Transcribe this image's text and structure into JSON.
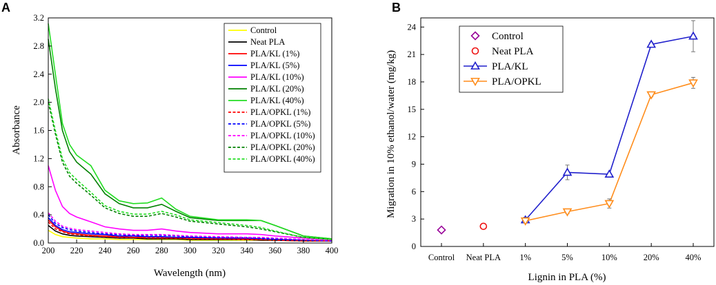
{
  "colors": {
    "control": "#ffff00",
    "neat": "#000000",
    "kl1": "#ff0000",
    "kl5": "#0000ff",
    "kl10": "#ff00ff",
    "kl20": "#008000",
    "kl40": "#22dd22",
    "klB": "#1f1fcc",
    "opklB": "#ff8c1a",
    "controlB": "#990099",
    "neatB": "#ee1111"
  },
  "chart_data": [
    {
      "panel": "A",
      "type": "line",
      "xlabel": "Wavelength (nm)",
      "ylabel": "Absorbance",
      "xlim": [
        200,
        400
      ],
      "ylim": [
        0,
        3.2
      ],
      "xticks": [
        "200",
        "220",
        "240",
        "260",
        "280",
        "300",
        "320",
        "340",
        "360",
        "380",
        "400"
      ],
      "yticks": [
        "0.0",
        "0.4",
        "0.8",
        "1.2",
        "1.6",
        "2.0",
        "2.4",
        "2.8",
        "3.2"
      ],
      "legend_position": "top-right",
      "x": [
        200,
        205,
        210,
        215,
        220,
        230,
        240,
        250,
        260,
        270,
        280,
        290,
        300,
        320,
        340,
        350,
        360,
        380,
        400
      ],
      "series": [
        {
          "name": "Control",
          "color_key": "control",
          "dashed": false,
          "values": [
            0.18,
            0.12,
            0.09,
            0.08,
            0.07,
            0.06,
            0.06,
            0.05,
            0.05,
            0.05,
            0.05,
            0.05,
            0.04,
            0.04,
            0.04,
            0.04,
            0.04,
            0.03,
            0.03
          ]
        },
        {
          "name": "Neat PLA",
          "color_key": "neat",
          "dashed": false,
          "values": [
            0.25,
            0.17,
            0.13,
            0.11,
            0.1,
            0.09,
            0.08,
            0.07,
            0.07,
            0.06,
            0.06,
            0.06,
            0.05,
            0.05,
            0.05,
            0.04,
            0.04,
            0.03,
            0.03
          ]
        },
        {
          "name": "PLA/KL (1%)",
          "color_key": "kl1",
          "dashed": false,
          "values": [
            0.33,
            0.23,
            0.17,
            0.14,
            0.13,
            0.11,
            0.1,
            0.09,
            0.08,
            0.08,
            0.08,
            0.07,
            0.07,
            0.06,
            0.06,
            0.05,
            0.05,
            0.04,
            0.03
          ]
        },
        {
          "name": "PLA/KL (5%)",
          "color_key": "kl5",
          "dashed": false,
          "values": [
            0.36,
            0.25,
            0.19,
            0.16,
            0.15,
            0.13,
            0.12,
            0.1,
            0.1,
            0.09,
            0.09,
            0.08,
            0.08,
            0.07,
            0.07,
            0.06,
            0.05,
            0.04,
            0.03
          ]
        },
        {
          "name": "PLA/KL (10%)",
          "color_key": "kl10",
          "dashed": false,
          "values": [
            1.1,
            0.75,
            0.52,
            0.42,
            0.37,
            0.3,
            0.23,
            0.2,
            0.18,
            0.18,
            0.2,
            0.17,
            0.15,
            0.13,
            0.13,
            0.12,
            0.1,
            0.07,
            0.05
          ]
        },
        {
          "name": "PLA/KL (20%)",
          "color_key": "kl20",
          "dashed": false,
          "values": [
            2.9,
            2.2,
            1.6,
            1.3,
            1.15,
            0.98,
            0.7,
            0.56,
            0.5,
            0.5,
            0.55,
            0.45,
            0.36,
            0.32,
            0.32,
            0.32,
            0.25,
            0.1,
            0.06
          ]
        },
        {
          "name": "PLA/KL (40%)",
          "color_key": "kl40",
          "dashed": false,
          "values": [
            3.12,
            2.4,
            1.7,
            1.4,
            1.25,
            1.1,
            0.75,
            0.6,
            0.56,
            0.57,
            0.64,
            0.48,
            0.38,
            0.33,
            0.33,
            0.32,
            0.25,
            0.1,
            0.06
          ]
        },
        {
          "name": "PLA/OPKL (1%)",
          "color_key": "kl1",
          "dashed": true,
          "values": [
            0.3,
            0.2,
            0.16,
            0.13,
            0.12,
            0.1,
            0.09,
            0.08,
            0.08,
            0.07,
            0.07,
            0.07,
            0.06,
            0.06,
            0.05,
            0.05,
            0.04,
            0.03,
            0.03
          ]
        },
        {
          "name": "PLA/OPKL (5%)",
          "color_key": "kl5",
          "dashed": true,
          "values": [
            0.4,
            0.28,
            0.22,
            0.19,
            0.17,
            0.15,
            0.13,
            0.12,
            0.11,
            0.11,
            0.11,
            0.1,
            0.09,
            0.08,
            0.08,
            0.07,
            0.06,
            0.04,
            0.03
          ]
        },
        {
          "name": "PLA/OPKL (10%)",
          "color_key": "kl10",
          "dashed": true,
          "values": [
            0.43,
            0.31,
            0.24,
            0.21,
            0.19,
            0.17,
            0.15,
            0.13,
            0.12,
            0.12,
            0.12,
            0.11,
            0.1,
            0.09,
            0.08,
            0.08,
            0.07,
            0.05,
            0.04
          ]
        },
        {
          "name": "PLA/OPKL (20%)",
          "color_key": "kl20",
          "dashed": true,
          "values": [
            2.0,
            1.55,
            1.15,
            0.95,
            0.85,
            0.68,
            0.5,
            0.42,
            0.38,
            0.38,
            0.42,
            0.37,
            0.31,
            0.27,
            0.23,
            0.2,
            0.16,
            0.08,
            0.05
          ]
        },
        {
          "name": "PLA/OPKL (40%)",
          "color_key": "kl40",
          "dashed": true,
          "values": [
            2.05,
            1.6,
            1.2,
            1.0,
            0.9,
            0.72,
            0.53,
            0.45,
            0.41,
            0.41,
            0.45,
            0.4,
            0.33,
            0.29,
            0.25,
            0.22,
            0.17,
            0.08,
            0.05
          ]
        }
      ]
    },
    {
      "panel": "B",
      "type": "line",
      "xlabel": "Lignin in PLA (%)",
      "ylabel": "Migration in 10% ethanol/water (mg/kg)",
      "ylim": [
        0,
        25
      ],
      "categories": [
        "Control",
        "Neat PLA",
        "1%",
        "5%",
        "10%",
        "20%",
        "40%"
      ],
      "yticks": [
        "0",
        "3",
        "6",
        "9",
        "12",
        "15",
        "18",
        "21",
        "24"
      ],
      "legend_position": "top-left",
      "series": [
        {
          "name": "Control",
          "color_key": "controlB",
          "marker": "diamond",
          "line": false,
          "values": [
            1.8,
            null,
            null,
            null,
            null,
            null,
            null
          ],
          "errors": [
            0.1,
            null,
            null,
            null,
            null,
            null,
            null
          ]
        },
        {
          "name": "Neat PLA",
          "color_key": "neatB",
          "marker": "circle",
          "line": false,
          "values": [
            null,
            2.2,
            null,
            null,
            null,
            null,
            null
          ],
          "errors": [
            null,
            0.1,
            null,
            null,
            null,
            null,
            null
          ]
        },
        {
          "name": "PLA/KL",
          "color_key": "klB",
          "marker": "triangle-up",
          "line": true,
          "values": [
            null,
            null,
            2.9,
            8.1,
            7.9,
            22.1,
            23.0
          ],
          "errors": [
            null,
            null,
            0.3,
            0.8,
            0.1,
            0.2,
            1.7
          ]
        },
        {
          "name": "PLA/OPKL",
          "color_key": "opklB",
          "marker": "triangle-down",
          "line": true,
          "values": [
            null,
            null,
            2.8,
            3.8,
            4.7,
            16.6,
            17.9
          ],
          "errors": [
            null,
            null,
            0.2,
            0.2,
            0.5,
            0.2,
            0.6
          ]
        }
      ]
    }
  ],
  "panels": {
    "a_label": "A",
    "b_label": "B"
  }
}
